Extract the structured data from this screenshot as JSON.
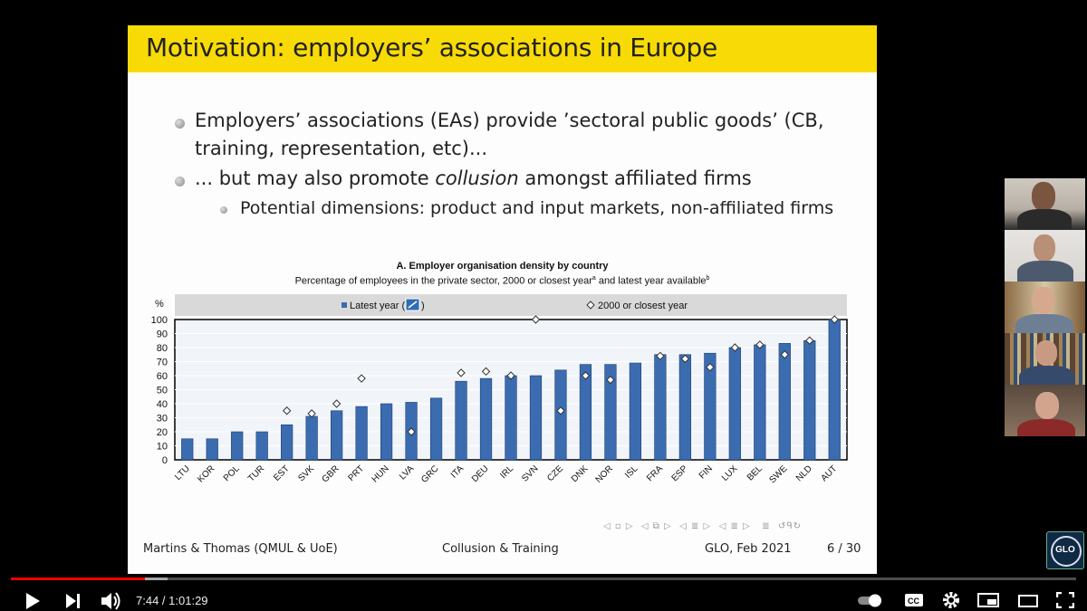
{
  "slide": {
    "title": "Motivation: employers’ associations in Europe",
    "bullets": [
      "Employers’ associations (EAs) provide ’sectoral public goods’ (CB,",
      "training, representation, etc)...",
      "... but may also promote ",
      "collusion",
      " amongst affiliated firms"
    ],
    "sub_bullet": "Potential dimensions: product and input markets, non-affiliated firms",
    "footer": {
      "authors": "Martins & Thomas (QMUL & UoE)",
      "topic": "Collusion & Training",
      "venue": "GLO, Feb 2021",
      "page": "6 / 30"
    }
  },
  "chart_data": {
    "type": "bar",
    "title": "A. Employer organisation density by country",
    "subtitle": "Percentage of employees in the private sector, 2000 or closest year",
    "subtitle_mid": " and latest year available",
    "sup_a": "a",
    "sup_b": "b",
    "ylabel": "%",
    "ylim": [
      0,
      100
    ],
    "yticks": [
      "0",
      "10",
      "20",
      "30",
      "40",
      "50",
      "60",
      "70",
      "80",
      "90",
      "100"
    ],
    "legend": {
      "bars": "Latest year (",
      "bars_close": ")",
      "markers": "2000 or closest year"
    },
    "categories": [
      "LTU",
      "KOR",
      "POL",
      "TUR",
      "EST",
      "SVK",
      "GBR",
      "PRT",
      "HUN",
      "LVA",
      "GRC",
      "ITA",
      "DEU",
      "IRL",
      "SVN",
      "CZE",
      "DNK",
      "NOR",
      "ISL",
      "FRA",
      "ESP",
      "FIN",
      "LUX",
      "BEL",
      "SWE",
      "NLD",
      "AUT"
    ],
    "series": [
      {
        "name": "Latest year",
        "values": [
          15,
          15,
          20,
          20,
          25,
          31,
          35,
          38,
          40,
          41,
          44,
          56,
          58,
          60,
          60,
          64,
          68,
          68,
          69,
          75,
          75,
          76,
          80,
          82,
          83,
          85,
          100
        ]
      },
      {
        "name": "2000 or closest year",
        "values": [
          null,
          null,
          null,
          null,
          35,
          33,
          40,
          58,
          null,
          20,
          null,
          62,
          63,
          60,
          100,
          35,
          60,
          57,
          null,
          74,
          72,
          66,
          80,
          82,
          75,
          85,
          100
        ]
      }
    ],
    "colors": {
      "bar": "#3b6cb0",
      "bar_edge": "#1d3f73",
      "plot_bg": "#f1f4f9",
      "legend_bg": "#d9d9d9"
    }
  },
  "player": {
    "current_time": "7:44",
    "duration": "1:01:29",
    "played_fraction": 0.126,
    "channel_logo": "GLO"
  }
}
